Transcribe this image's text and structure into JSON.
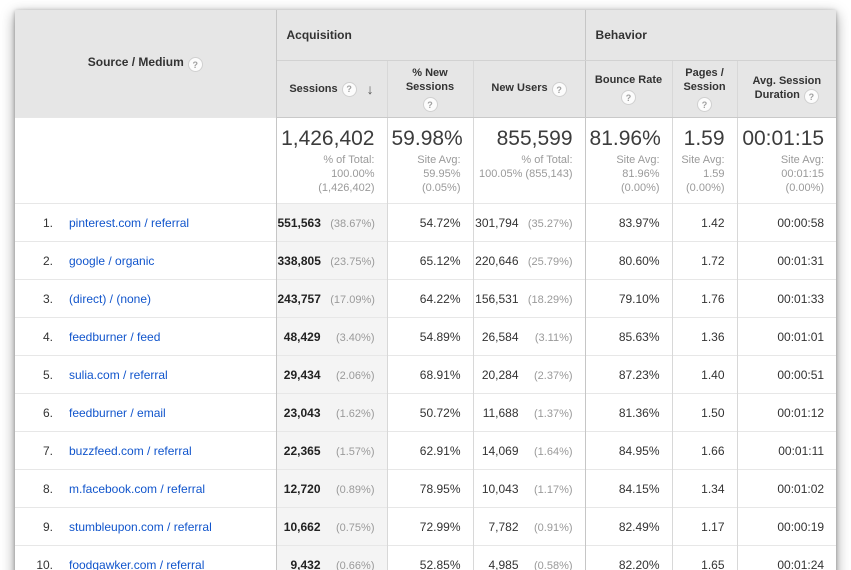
{
  "header": {
    "source_medium": "Source / Medium",
    "groups": {
      "acquisition": "Acquisition",
      "behavior": "Behavior"
    },
    "columns": {
      "sessions": "Sessions",
      "pct_new_sessions": "% New Sessions",
      "new_users": "New Users",
      "bounce_rate": "Bounce Rate",
      "pages_session": "Pages / Session",
      "avg_duration": "Avg. Session Duration"
    }
  },
  "icons": {
    "help": "?",
    "sort_desc": "↓"
  },
  "summary": {
    "sessions": {
      "value": "1,426,402",
      "subtext": "% of Total:\n100.00%\n(1,426,402)"
    },
    "pct_new_sessions": {
      "value": "59.98%",
      "subtext": "Site Avg:\n59.95%\n(0.05%)"
    },
    "new_users": {
      "value": "855,599",
      "subtext": "% of Total:\n100.05% (855,143)"
    },
    "bounce_rate": {
      "value": "81.96%",
      "subtext": "Site Avg:\n81.96%\n(0.00%)"
    },
    "pages_session": {
      "value": "1.59",
      "subtext": "Site Avg:\n1.59\n(0.00%)"
    },
    "avg_duration": {
      "value": "00:01:15",
      "subtext": "Site Avg:\n00:01:15\n(0.00%)"
    }
  },
  "rows": [
    {
      "rank": "1.",
      "source": "pinterest.com / referral",
      "sessions": "551,563",
      "sessions_pct": "(38.67%)",
      "pct_new_sessions": "54.72%",
      "new_users": "301,794",
      "new_users_pct": "(35.27%)",
      "bounce_rate": "83.97%",
      "pages_per_session": "1.42",
      "avg_duration": "00:00:58"
    },
    {
      "rank": "2.",
      "source": "google / organic",
      "sessions": "338,805",
      "sessions_pct": "(23.75%)",
      "pct_new_sessions": "65.12%",
      "new_users": "220,646",
      "new_users_pct": "(25.79%)",
      "bounce_rate": "80.60%",
      "pages_per_session": "1.72",
      "avg_duration": "00:01:31"
    },
    {
      "rank": "3.",
      "source": "(direct) / (none)",
      "sessions": "243,757",
      "sessions_pct": "(17.09%)",
      "pct_new_sessions": "64.22%",
      "new_users": "156,531",
      "new_users_pct": "(18.29%)",
      "bounce_rate": "79.10%",
      "pages_per_session": "1.76",
      "avg_duration": "00:01:33"
    },
    {
      "rank": "4.",
      "source": "feedburner / feed",
      "sessions": "48,429",
      "sessions_pct": "(3.40%)",
      "pct_new_sessions": "54.89%",
      "new_users": "26,584",
      "new_users_pct": "(3.11%)",
      "bounce_rate": "85.63%",
      "pages_per_session": "1.36",
      "avg_duration": "00:01:01"
    },
    {
      "rank": "5.",
      "source": "sulia.com / referral",
      "sessions": "29,434",
      "sessions_pct": "(2.06%)",
      "pct_new_sessions": "68.91%",
      "new_users": "20,284",
      "new_users_pct": "(2.37%)",
      "bounce_rate": "87.23%",
      "pages_per_session": "1.40",
      "avg_duration": "00:00:51"
    },
    {
      "rank": "6.",
      "source": "feedburner / email",
      "sessions": "23,043",
      "sessions_pct": "(1.62%)",
      "pct_new_sessions": "50.72%",
      "new_users": "11,688",
      "new_users_pct": "(1.37%)",
      "bounce_rate": "81.36%",
      "pages_per_session": "1.50",
      "avg_duration": "00:01:12"
    },
    {
      "rank": "7.",
      "source": "buzzfeed.com / referral",
      "sessions": "22,365",
      "sessions_pct": "(1.57%)",
      "pct_new_sessions": "62.91%",
      "new_users": "14,069",
      "new_users_pct": "(1.64%)",
      "bounce_rate": "84.95%",
      "pages_per_session": "1.66",
      "avg_duration": "00:01:11"
    },
    {
      "rank": "8.",
      "source": "m.facebook.com / referral",
      "sessions": "12,720",
      "sessions_pct": "(0.89%)",
      "pct_new_sessions": "78.95%",
      "new_users": "10,043",
      "new_users_pct": "(1.17%)",
      "bounce_rate": "84.15%",
      "pages_per_session": "1.34",
      "avg_duration": "00:01:02"
    },
    {
      "rank": "9.",
      "source": "stumbleupon.com / referral",
      "sessions": "10,662",
      "sessions_pct": "(0.75%)",
      "pct_new_sessions": "72.99%",
      "new_users": "7,782",
      "new_users_pct": "(0.91%)",
      "bounce_rate": "82.49%",
      "pages_per_session": "1.17",
      "avg_duration": "00:00:19"
    },
    {
      "rank": "10.",
      "source": "foodgawker.com / referral",
      "sessions": "9,432",
      "sessions_pct": "(0.66%)",
      "pct_new_sessions": "52.85%",
      "new_users": "4,985",
      "new_users_pct": "(0.58%)",
      "bounce_rate": "82.20%",
      "pages_per_session": "1.65",
      "avg_duration": "00:01:24"
    }
  ],
  "colors": {
    "link": "#1155cc",
    "header_bg": "#e6e6e6",
    "sorted_column_bg": "#f4f4f4"
  }
}
